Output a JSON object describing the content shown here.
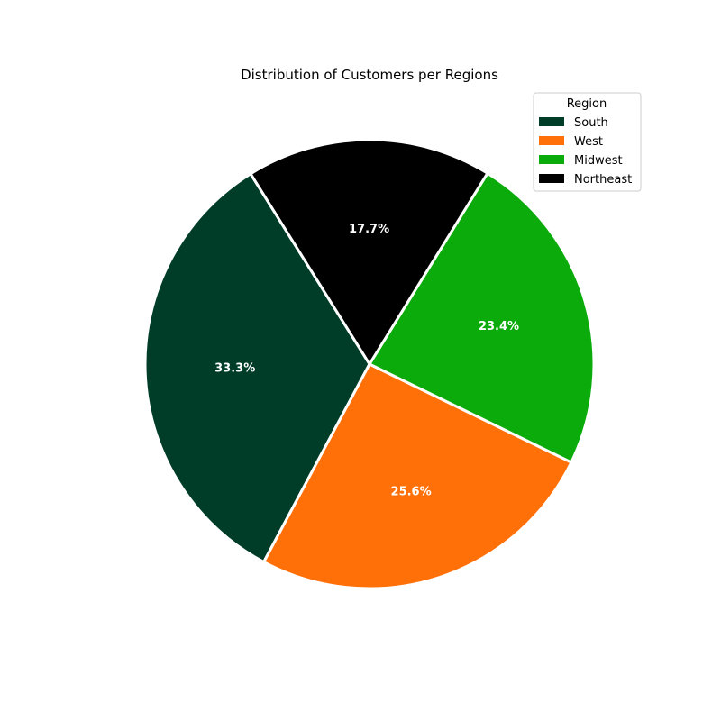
{
  "chart_data": {
    "type": "pie",
    "title": "Distribution of Customers per Regions",
    "categories": [
      "South",
      "West",
      "Midwest",
      "Northeast"
    ],
    "values": [
      33.3,
      25.6,
      23.4,
      17.7
    ],
    "labels": [
      "33.3%",
      "25.6%",
      "23.4%",
      "17.7%"
    ],
    "colors": [
      "#003d28",
      "#ff7009",
      "#0bab0b",
      "#000000"
    ],
    "wedge_edge_color": "#ffffff",
    "start_angle_deg": 122,
    "direction": "counterclockwise",
    "legend": {
      "title": "Region",
      "placement": "top-right"
    }
  }
}
